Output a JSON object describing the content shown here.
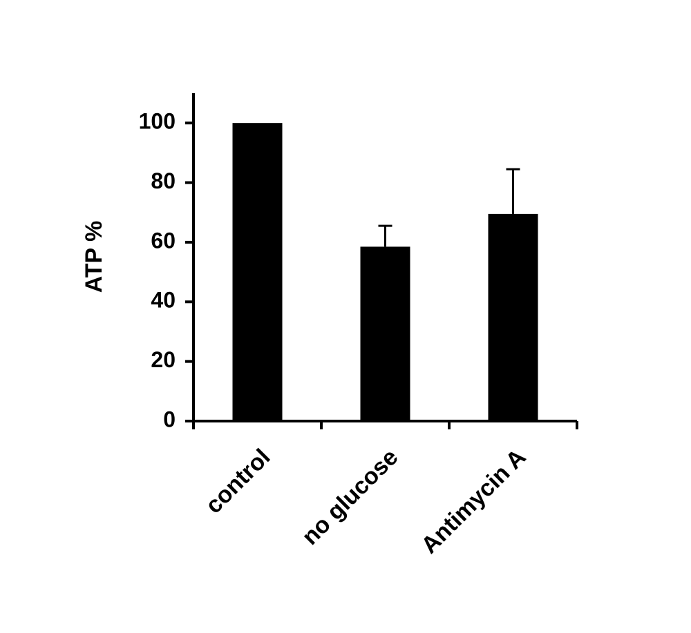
{
  "chart_data": {
    "type": "bar",
    "ylabel": "ATP %",
    "categories": [
      "control",
      "no glucose",
      "Antimycin A"
    ],
    "values": [
      100,
      58.5,
      69.5
    ],
    "errors": [
      null,
      7,
      15
    ],
    "color": "#000000",
    "ylim": [
      0,
      110
    ],
    "yticks": [
      0,
      20,
      40,
      60,
      80,
      100
    ]
  }
}
